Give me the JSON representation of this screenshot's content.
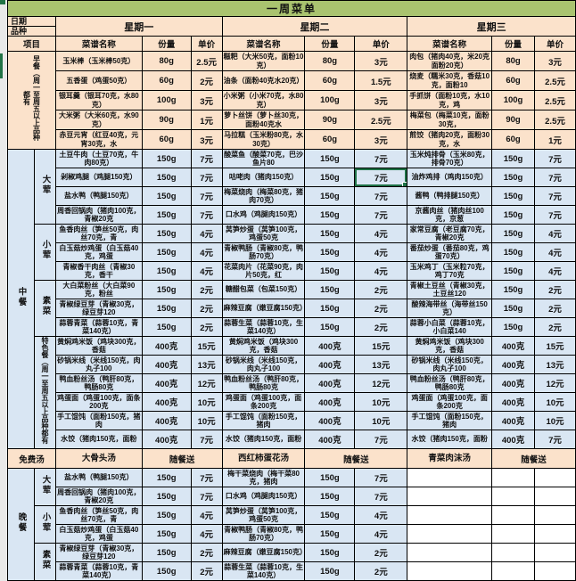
{
  "title": "一周菜单",
  "colors": {
    "title_bg": "#a9c36f",
    "breakfast_bg": "#fbe2cb",
    "lunch_bg": "#d9e6f3",
    "selection_border": "#1f7246",
    "grid_border": "#000000"
  },
  "table": {
    "corner_top": "日期",
    "corner_bottom": "品种",
    "item_header": "项目",
    "days": [
      "星期一",
      "星期二",
      "星期三"
    ],
    "sub_headers": [
      "菜谱名称",
      "份量",
      "单价"
    ],
    "soup_note": "随餐送",
    "sections": [
      {
        "key": "breakfast",
        "label": "早餐（周一至周五以上品种都有",
        "labelVertical": true,
        "labelColspan": 2,
        "bg": "peach",
        "groups": [
          {
            "label": "",
            "rows": [
              {
                "d": [
                  [
                    "玉米棒（玉米棒50克）",
                    "80g",
                    "2.5元"
                  ],
                  [
                    "糍粑（大米50克，面粉10克）",
                    "80g",
                    "3元"
                  ],
                  [
                    "肉包（猪肉40克，米20克面粉20克）",
                    "80g",
                    "3元"
                  ]
                ]
              },
              {
                "d": [
                  [
                    "五香蛋（鸡蛋50克）",
                    "60g",
                    "2元"
                  ],
                  [
                    "油条（面粉40克水20克）",
                    "60g",
                    "1.5元"
                  ],
                  [
                    "烧麦（糯米30克，香菇10克，面粉10",
                    "60g",
                    "2.5元"
                  ]
                ]
              },
              {
                "d": [
                  [
                    "银耳羹（银耳70克，水80克）",
                    "100g",
                    "3元"
                  ],
                  [
                    "小米粥（小米70克，水80克）",
                    "100g",
                    "3元"
                  ],
                  [
                    "手抓饼（面粉10克，水10克，鸡",
                    "100g",
                    "2.5元"
                  ]
                ]
              },
              {
                "d": [
                  [
                    "大米粥（大米60克，水90克）",
                    "90g",
                    "1元"
                  ],
                  [
                    "萝卜丝饼（萝卜丝30克，面粉40克水",
                    "90g",
                    "2.5元"
                  ],
                  [
                    "梅菜包（梅菜10克，面粉30克，",
                    "90g",
                    "2.5元"
                  ]
                ]
              },
              {
                "d": [
                  [
                    "赤豆元宵（红豆40克，元宵30克，水",
                    "60g",
                    "3元"
                  ],
                  [
                    "马拉糕（玉米粉80克，水30克）",
                    "60g",
                    "3元"
                  ],
                  [
                    "煎饺（猪肉20克，面粉30克，水",
                    "60g",
                    "1元"
                  ]
                ]
              }
            ]
          }
        ]
      },
      {
        "key": "lunch",
        "label": "中餐",
        "labelVertical": true,
        "labelColspan": 1,
        "bg": "blue",
        "groups": [
          {
            "label": "大荤",
            "rows": [
              {
                "d": [
                  [
                    "土豆牛肉（土豆70克，牛肉80克）",
                    "150g",
                    "7元"
                  ],
                  [
                    "酸菜鱼（酸菜70克，巴沙鱼片80",
                    "150g",
                    "7元"
                  ],
                  [
                    "玉米炖排骨（玉米80克，排骨70克）",
                    "150g",
                    "7元"
                  ]
                ]
              },
              {
                "sel": [
                  1,
                  2
                ],
                "d": [
                  [
                    "剁椒鸡腿（鸡腿150克）",
                    "150g",
                    "7元"
                  ],
                  [
                    "咕咾肉（猪肉150克）",
                    "150g",
                    "7元"
                  ],
                  [
                    "油炸鸡排（鸡肉150克）",
                    "150g",
                    "7元"
                  ]
                ]
              },
              {
                "d": [
                  [
                    "盐水鸭（鸭腿150克）",
                    "150g",
                    "7元"
                  ],
                  [
                    "梅菜烧肉（梅菜80克，猪肉70克）",
                    "150g",
                    "7元"
                  ],
                  [
                    "酱鸭（鸭排腿150克）",
                    "150g",
                    "7元"
                  ]
                ]
              },
              {
                "d": [
                  [
                    "周香回锅肉（猪肉100克，青椒20克",
                    "150g",
                    "7元"
                  ],
                  [
                    "口水鸡（鸡腿肉150克）",
                    "150g",
                    "7元"
                  ],
                  [
                    "京酱肉丝（猪肉丝100克，京葱",
                    "150g",
                    "7元"
                  ]
                ]
              }
            ]
          },
          {
            "label": "小荤",
            "rows": [
              {
                "d": [
                  [
                    "鱼香肉丝（笋丝50克，肉丝70克，青",
                    "150g",
                    "4元"
                  ],
                  [
                    "莴笋炒蛋（莴笋100克，鸡蛋50克",
                    "150g",
                    "4元"
                  ],
                  [
                    "家常豆腐（老豆腐70克，青椒20克",
                    "150g",
                    "4元"
                  ]
                ]
              },
              {
                "d": [
                  [
                    "白玉菇炒鸡蛋（白玉菇40克，鸡蛋",
                    "150g",
                    "4元"
                  ],
                  [
                    "青椒鸭肠（青椒80克，鸭肠70克）",
                    "150g",
                    "4元"
                  ],
                  [
                    "番茄炒蛋（番茄80克，鸡蛋70克）",
                    "150g",
                    "4元"
                  ]
                ]
              },
              {
                "d": [
                  [
                    "青椒香干肉丝（青椒30克，香干",
                    "150g",
                    "4元"
                  ],
                  [
                    "花菜肉片（花菜90克，肉片50克，红",
                    "150g",
                    "4元"
                  ],
                  [
                    "玉米鸡丁（玉米粒70克，鸡丁70克",
                    "150g",
                    "4元"
                  ]
                ]
              }
            ]
          },
          {
            "label": "素菜",
            "rows": [
              {
                "d": [
                  [
                    "大白菜粉丝（大白菜90克，粉丝",
                    "150g",
                    "2元"
                  ],
                  [
                    "糖醋包菜（包菜150克）",
                    "150g",
                    "2元"
                  ],
                  [
                    "青椒土豆丝（青椒30克，土豆丝120",
                    "150g",
                    "2元"
                  ]
                ]
              },
              {
                "d": [
                  [
                    "青椒绿豆芽（青椒30克，绿豆芽120",
                    "150g",
                    "2元"
                  ],
                  [
                    "麻辣豆腐（嫩豆腐150克）",
                    "150g",
                    "2元"
                  ],
                  [
                    "酸辣海带丝（海带丝150克）",
                    "150g",
                    "2元"
                  ]
                ]
              },
              {
                "d": [
                  [
                    "蒜蓉青菜（蒜蓉10克，青菜140克）",
                    "150g",
                    "2元"
                  ],
                  [
                    "蒜蓉生菜（蒜蓉10克，生菜140克）",
                    "150g",
                    "2元"
                  ],
                  [
                    "蒜蓉小白菜（蒜蓉10克，小白菜140",
                    "150g",
                    "2元"
                  ]
                ]
              }
            ]
          },
          {
            "label": "特色餐（周一至周五以上品种都有",
            "labelVertical": true,
            "rows": [
              {
                "d": [
                  [
                    "黄焖鸡米饭（鸡块300克，香菇",
                    "400克",
                    "15元"
                  ],
                  [
                    "黄焖鸡米饭（鸡块300克，香菇",
                    "400克",
                    "15元"
                  ],
                  [
                    "黄焖鸡米饭（鸡块300克，香菇",
                    "400克",
                    "15元"
                  ]
                ]
              },
              {
                "d": [
                  [
                    "砂锅米线（米线150克，肉丸子100",
                    "400克",
                    "13元"
                  ],
                  [
                    "砂锅米线（米线150克，肉丸子100",
                    "400克",
                    "13元"
                  ],
                  [
                    "砂锅米线（米线150克，肉丸子100",
                    "400克",
                    "13元"
                  ]
                ]
              },
              {
                "d": [
                  [
                    "鸭血粉丝汤（鸭肝80克，鸭肠80克",
                    "400克",
                    "12元"
                  ],
                  [
                    "鸭血粉丝汤（鸭肝80克，鸭肠80克",
                    "400克",
                    "12元"
                  ],
                  [
                    "鸭血粉丝汤（鸭肝80克，鸭肠80克",
                    "400克",
                    "12元"
                  ]
                ]
              },
              {
                "d": [
                  [
                    "鸡蛋面（鸡蛋100克，面条200克",
                    "400克",
                    "10元"
                  ],
                  [
                    "鸡蛋面（鸡蛋100克，面条200克",
                    "400克",
                    "10元"
                  ],
                  [
                    "鸡蛋面（鸡蛋100克，面条200克",
                    "400克",
                    "10元"
                  ]
                ]
              },
              {
                "d": [
                  [
                    "手工馄饨（面粉150克，猪肉",
                    "400克",
                    "10元"
                  ],
                  [
                    "手工馄饨（面粉150克，猪肉",
                    "400克",
                    "10元"
                  ],
                  [
                    "手工馄饨（面粉150克，猪肉",
                    "400克",
                    "10元"
                  ]
                ]
              },
              {
                "d": [
                  [
                    "水饺（猪肉150克，面粉",
                    "400克",
                    "7元"
                  ],
                  [
                    "水饺（猪肉150克，面粉",
                    "400克",
                    "7元"
                  ],
                  [
                    "水饺（猪肉150克，面粉",
                    "400克",
                    "7元"
                  ]
                ]
              }
            ]
          }
        ]
      },
      {
        "key": "free-soup",
        "label": "免费汤",
        "labelColspan": 2,
        "bg": "peach",
        "soup": true,
        "soups": [
          "大骨头汤",
          "西红柿蛋花汤",
          "青菜肉沫汤"
        ]
      },
      {
        "key": "dinner",
        "label": "晚餐",
        "labelVertical": true,
        "labelColspan": 1,
        "bg": "blue",
        "wedEmpty": true,
        "groups": [
          {
            "label": "大荤",
            "rows": [
              {
                "d": [
                  [
                    "盐水鸭（鸭腿150克）",
                    "150g",
                    "7元"
                  ],
                  [
                    "梅干菜烧肉（梅干菜80克，猪肉",
                    "150g",
                    "7元"
                  ],
                  [
                    "",
                    "",
                    ""
                  ]
                ]
              },
              {
                "d": [
                  [
                    "周香回锅肉（猪肉100克，青椒20克",
                    "150g",
                    "7元"
                  ],
                  [
                    "口水鸡（鸡腿肉150克）",
                    "150g",
                    "7元"
                  ],
                  [
                    "",
                    "",
                    ""
                  ]
                ]
              }
            ]
          },
          {
            "label": "小荤",
            "rows": [
              {
                "d": [
                  [
                    "鱼香肉丝（笋丝50克，肉丝70克，青",
                    "150g",
                    "4元"
                  ],
                  [
                    "莴笋炒蛋（莴笋100克，鸡蛋50克",
                    "150g",
                    "4元"
                  ],
                  [
                    "",
                    "",
                    ""
                  ]
                ]
              },
              {
                "d": [
                  [
                    "白玉菇炒鸡蛋（白玉菇40克，鸡蛋",
                    "150g",
                    "4元"
                  ],
                  [
                    "青椒鸭肠（青椒80克，鸭肠70克）",
                    "150g",
                    "4元"
                  ],
                  [
                    "",
                    "",
                    ""
                  ]
                ]
              }
            ]
          },
          {
            "label": "素菜",
            "rows": [
              {
                "d": [
                  [
                    "青椒绿豆芽（青椒30克，绿豆芽120",
                    "150g",
                    "2元"
                  ],
                  [
                    "麻辣豆腐（嫩豆腐150克）",
                    "150g",
                    "2元"
                  ],
                  [
                    "",
                    "",
                    ""
                  ]
                ]
              },
              {
                "d": [
                  [
                    "蒜蓉青菜（蒜蓉10克，青菜140克）",
                    "150g",
                    "2元"
                  ],
                  [
                    "蒜蓉生菜（蒜蓉10克，生菜140克）",
                    "150g",
                    "2元"
                  ],
                  [
                    "",
                    "",
                    ""
                  ]
                ]
              }
            ]
          }
        ]
      }
    ]
  }
}
